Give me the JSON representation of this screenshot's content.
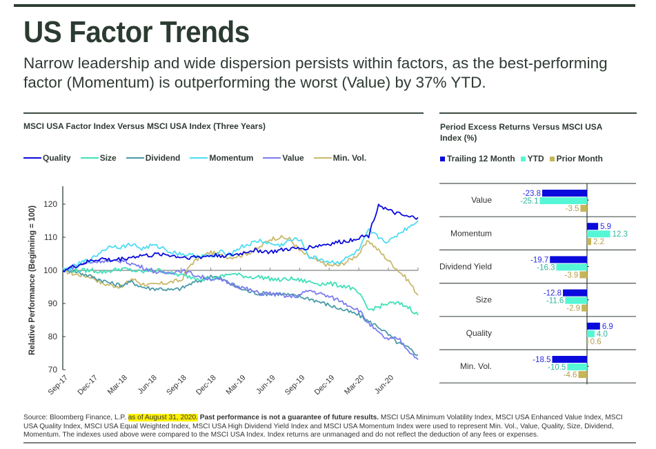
{
  "header": {
    "title": "US Factor Trends",
    "subtitle": "Narrow leadership and wide dispersion persists within factors, as the best-performing factor (Momentum) is outperforming the worst (Value) by 37% YTD."
  },
  "colors": {
    "brand_dark": "#2c3b31",
    "Quality": "#0a0adc",
    "Size": "#3ee0b8",
    "Dividend": "#4a9aa8",
    "Momentum": "#4ddcf2",
    "Value": "#7b7bf0",
    "Min. Vol.": "#c9b86a",
    "Trailing 12 Month": "#0a0adc",
    "YTD": "#55f7d6",
    "Prior Month": "#c7b55a",
    "highlight": "#fff200"
  },
  "chart_data": [
    {
      "type": "line",
      "title": "MSCI USA Factor Index Versus MSCI USA Index (Three Years)",
      "xlabel": "",
      "ylabel": "Relative Performance (Beginning = 100)",
      "ylim": [
        70,
        125
      ],
      "yticks": [
        70,
        80,
        90,
        100,
        110,
        120
      ],
      "xtick_labels": [
        "Sep-17",
        "Dec-17",
        "Mar-18",
        "Jun-18",
        "Sep-18",
        "Dec-18",
        "Mar-19",
        "Jun-19",
        "Sep-19",
        "Dec-19",
        "Mar-20",
        "Jun-20"
      ],
      "x_months": [
        0,
        1,
        2,
        3,
        4,
        5,
        6,
        7,
        8,
        9,
        10,
        11,
        12,
        13,
        14,
        15,
        16,
        17,
        18,
        19,
        20,
        21,
        22,
        23,
        24,
        25,
        26,
        27,
        28,
        29,
        30,
        31,
        32,
        33,
        34,
        35,
        36
      ],
      "baseline": 100,
      "legend": "top",
      "series": [
        {
          "name": "Quality",
          "values": [
            100,
            101,
            102,
            103,
            103.5,
            103,
            103.5,
            104,
            104.5,
            104.5,
            105,
            104.5,
            104,
            104,
            104,
            104.5,
            104.5,
            104.5,
            105,
            106,
            106,
            105.5,
            106,
            106.5,
            106.5,
            107,
            107.5,
            108,
            108.5,
            109,
            110,
            110.5,
            120,
            118,
            117,
            116,
            116
          ]
        },
        {
          "name": "Size",
          "values": [
            100,
            100,
            100,
            100,
            99.5,
            100,
            100.5,
            100,
            99.5,
            100,
            100,
            99,
            98.5,
            98,
            97.5,
            97.5,
            98,
            99,
            98.5,
            98,
            98,
            97.5,
            97,
            97.5,
            97,
            96.5,
            96,
            96,
            95.5,
            95,
            93,
            88,
            89,
            90,
            90,
            89,
            86.5
          ]
        },
        {
          "name": "Dividend",
          "values": [
            100,
            100,
            99,
            98,
            97,
            96,
            95.5,
            96.5,
            95,
            94.5,
            94.5,
            94,
            94.5,
            96,
            97,
            98.5,
            97.5,
            96,
            94.5,
            93.5,
            93,
            93,
            93,
            92.5,
            92,
            91.5,
            90.5,
            89.5,
            88.5,
            87.5,
            86.5,
            84.5,
            83,
            80.5,
            78,
            76.5,
            74.5
          ]
        },
        {
          "name": "Momentum",
          "values": [
            100,
            101,
            102.5,
            103.5,
            106,
            107.5,
            107,
            108,
            106.5,
            107.5,
            107,
            105.5,
            105,
            104.5,
            104.5,
            104,
            105.5,
            105,
            107,
            108,
            109,
            108,
            107.5,
            109,
            109.5,
            104,
            103.5,
            102.5,
            102.5,
            104,
            106,
            112,
            110,
            108.5,
            111,
            113,
            115
          ]
        },
        {
          "name": "Value",
          "values": [
            100,
            101,
            102,
            102.5,
            103,
            102.5,
            103,
            102,
            101,
            100,
            99,
            99.5,
            100,
            99,
            98,
            97.5,
            97,
            96,
            95,
            94,
            93,
            93,
            92.5,
            92,
            92.5,
            94,
            93,
            92,
            91,
            89.5,
            88,
            84,
            81,
            79,
            79.5,
            76,
            73
          ]
        },
        {
          "name": "Min. Vol.",
          "values": [
            100,
            99,
            98.5,
            98,
            96,
            95.5,
            95,
            97.5,
            96,
            95.5,
            96,
            96.5,
            97,
            102,
            104,
            105.5,
            104.5,
            104,
            104.5,
            105.5,
            107,
            109.5,
            110,
            109.5,
            106,
            104,
            102.5,
            101.5,
            101.5,
            103,
            105,
            109,
            106,
            103,
            100,
            97,
            92.5
          ]
        }
      ]
    },
    {
      "type": "bar",
      "orientation": "horizontal",
      "title": "Period Excess Returns Versus MSCI USA Index (%)",
      "categories": [
        "Value",
        "Momentum",
        "Dividend Yield",
        "Size",
        "Quality",
        "Min. Vol."
      ],
      "legend": "top",
      "series": [
        {
          "name": "Trailing 12 Month",
          "values": [
            -23.8,
            5.9,
            -19.7,
            -12.8,
            6.9,
            -18.5
          ],
          "labels": [
            "-23.8",
            "5.9",
            "-19.7",
            "-12.8",
            "6.9",
            "-18.5"
          ]
        },
        {
          "name": "YTD",
          "values": [
            -25.1,
            12.3,
            -16.3,
            -11.6,
            4.0,
            -10.5
          ],
          "labels": [
            "-25.1",
            "12.3",
            "-16.3",
            "-11.6",
            "4.0",
            "-10.5"
          ]
        },
        {
          "name": "Prior Month",
          "values": [
            -3.5,
            2.2,
            -3.9,
            -2.9,
            0.6,
            -4.6
          ],
          "labels": [
            "-3.5",
            "2.2",
            "-3.9",
            "-2.9",
            "0.6",
            "-4.6"
          ]
        }
      ]
    }
  ],
  "footnote": {
    "source": "Source: Bloomberg Finance, L.P. ",
    "date": "as of August 31, 2020.",
    "disclaimer": " Past performance is not a guarantee of future results.",
    "body": " MSCI USA Minimum Volatility Index, MSCI USA Enhanced Value Index, MSCI USA Quality Index, MSCI USA Equal Weighted Index, MSCI USA High Dividend Yield Index and MSCI USA Momentum Index were used to represent Min. Vol., Value, Quality, Size, Dividend, Momentum. The indexes used above were compared to the MSCI USA Index. Index returns are unmanaged and do not reflect the deduction of any fees or expenses."
  }
}
